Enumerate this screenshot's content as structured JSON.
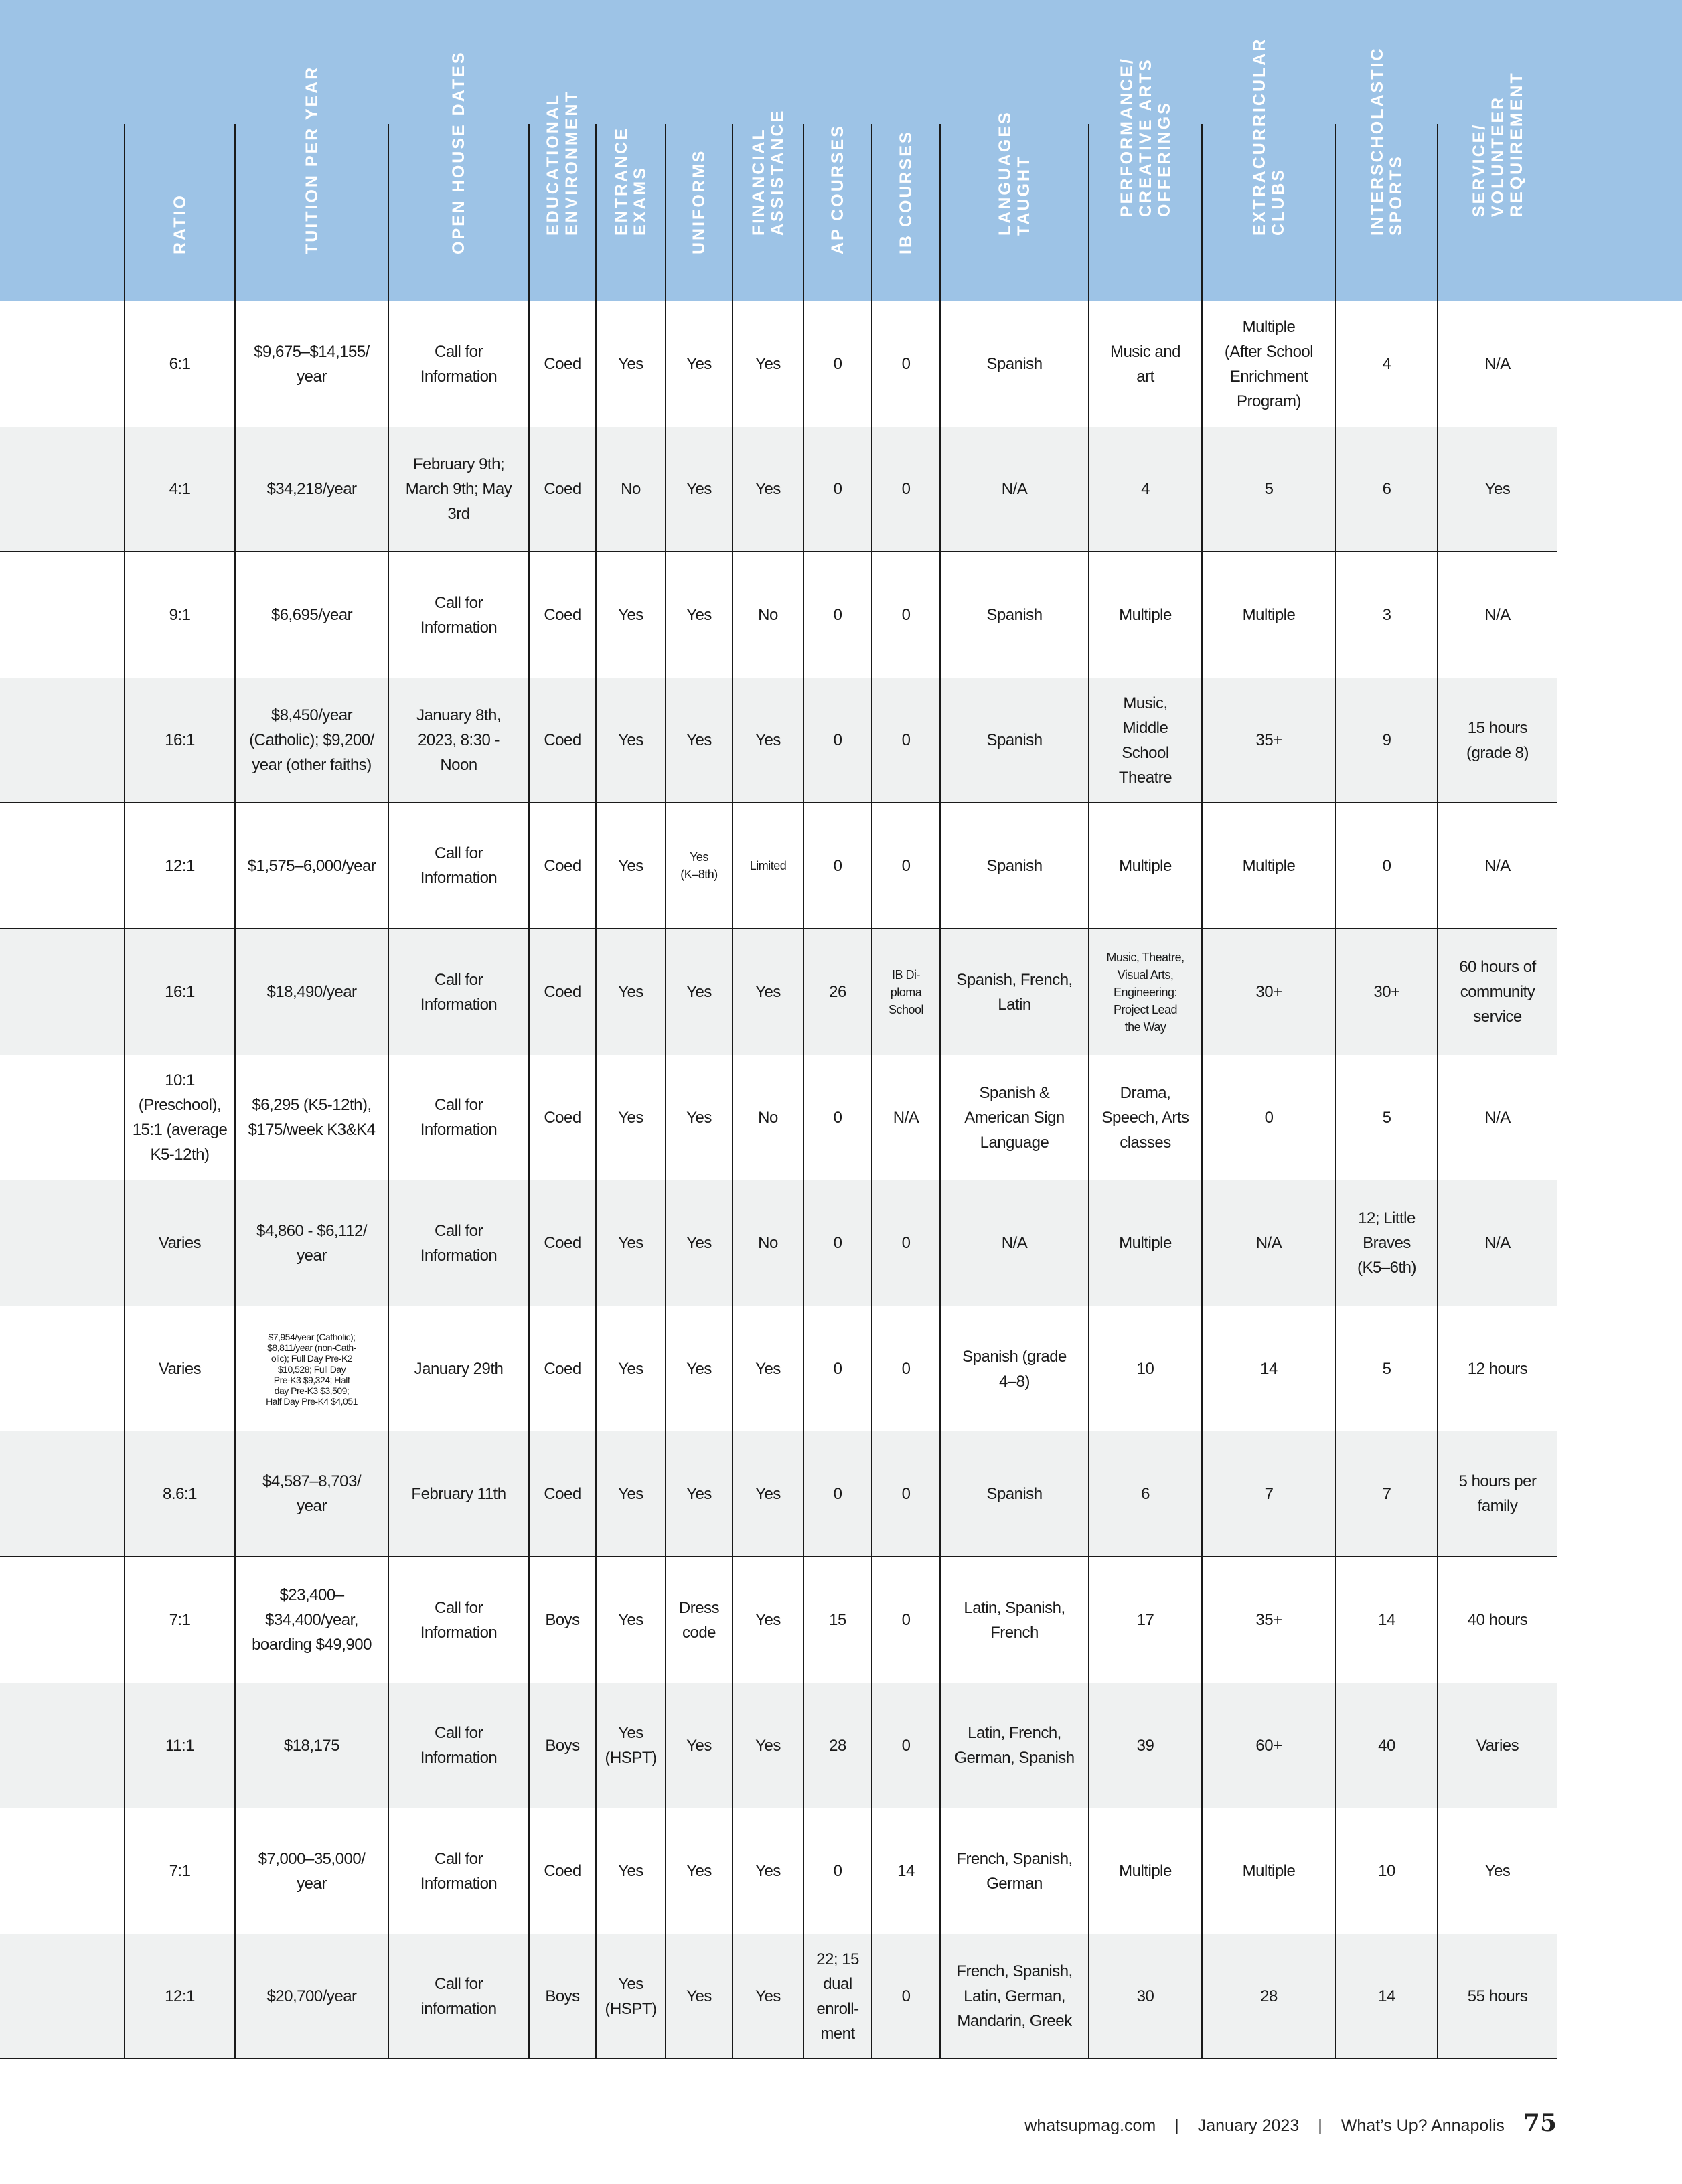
{
  "header": {
    "background": "#9dc3e6",
    "columns": [
      "",
      "RATIO",
      "TUITION PER YEAR",
      "OPEN HOUSE DATES",
      "EDUCATIONAL\nENVIRONMENT",
      "ENTRANCE\nEXAMS",
      "UNIFORMS",
      "FINANCIAL\nASSISTANCE",
      "AP COURSES",
      "IB COURSES",
      "LANGUAGES\nTAUGHT",
      "PERFORMANCE/\nCREATIVE ARTS\nOFFERINGS",
      "EXTRACURRICULAR\nCLUBS",
      "INTERSCHOLASTIC\nSPORTS",
      "SERVICE/\nVOLUNTEER\nREQUIREMENT"
    ]
  },
  "rows": [
    [
      "",
      "6:1",
      "$9,675–$14,155/\nyear",
      "Call for\nInformation",
      "Coed",
      "Yes",
      "Yes",
      "Yes",
      "0",
      "0",
      "Spanish",
      "Music and\nart",
      "Multiple\n(After School\nEnrichment\nProgram)",
      "4",
      "N/A"
    ],
    [
      "",
      "4:1",
      "$34,218/year",
      "February 9th;\nMarch 9th; May\n3rd",
      "Coed",
      "No",
      "Yes",
      "Yes",
      "0",
      "0",
      "N/A",
      "4",
      "5",
      "6",
      "Yes"
    ],
    [
      "",
      "9:1",
      "$6,695/year",
      "Call for\nInformation",
      "Coed",
      "Yes",
      "Yes",
      "No",
      "0",
      "0",
      "Spanish",
      "Multiple",
      "Multiple",
      "3",
      "N/A"
    ],
    [
      "",
      "16:1",
      "$8,450/year\n(Catholic); $9,200/\nyear (other faiths)",
      "January 8th,\n2023, 8:30 -\nNoon",
      "Coed",
      "Yes",
      "Yes",
      "Yes",
      "0",
      "0",
      "Spanish",
      "Music,\nMiddle\nSchool\nTheatre",
      "35+",
      "9",
      "15 hours\n(grade 8)"
    ],
    [
      "",
      "12:1",
      "$1,575–6,000/year",
      "Call for\nInformation",
      "Coed",
      "Yes",
      "Yes\n(K–8th)",
      "Limited",
      "0",
      "0",
      "Spanish",
      "Multiple",
      "Multiple",
      "0",
      "N/A"
    ],
    [
      "",
      "16:1",
      "$18,490/year",
      "Call for\nInformation",
      "Coed",
      "Yes",
      "Yes",
      "Yes",
      "26",
      "IB Di-\nploma\nSchool",
      "Spanish, French,\nLatin",
      "Music, Theatre,\nVisual Arts,\nEngineering:\nProject Lead\nthe Way",
      "30+",
      "30+",
      "60 hours of\ncommunity\nservice"
    ],
    [
      "",
      "10:1\n(Preschool),\n15:1 (average\nK5-12th)",
      "$6,295 (K5-12th),\n$175/week K3&K4",
      "Call for\nInformation",
      "Coed",
      "Yes",
      "Yes",
      "No",
      "0",
      "N/A",
      "Spanish &\nAmerican Sign\nLanguage",
      "Drama,\nSpeech, Arts\nclasses",
      "0",
      "5",
      "N/A"
    ],
    [
      "",
      "Varies",
      "$4,860 - $6,112/\nyear",
      "Call for\nInformation",
      "Coed",
      "Yes",
      "Yes",
      "No",
      "0",
      "0",
      "N/A",
      "Multiple",
      "N/A",
      "12; Little\nBraves\n(K5–6th)",
      "N/A"
    ],
    [
      "",
      "Varies",
      "$7,954/year (Catholic);\n$8,811/year (non-Cath-\nolic); Full Day Pre-K2\n$10,528; Full Day\nPre-K3 $9,324; Half\nday Pre-K3 $3,509;\nHalf Day Pre-K4 $4,051",
      "January 29th",
      "Coed",
      "Yes",
      "Yes",
      "Yes",
      "0",
      "0",
      "Spanish (grade\n4–8)",
      "10",
      "14",
      "5",
      "12 hours"
    ],
    [
      "",
      "8.6:1",
      "$4,587–8,703/\nyear",
      "February 11th",
      "Coed",
      "Yes",
      "Yes",
      "Yes",
      "0",
      "0",
      "Spanish",
      "6",
      "7",
      "7",
      "5 hours per\nfamily"
    ],
    [
      "",
      "7:1",
      "$23,400–\n$34,400/year,\nboarding $49,900",
      "Call for\nInformation",
      "Boys",
      "Yes",
      "Dress\ncode",
      "Yes",
      "15",
      "0",
      "Latin, Spanish,\nFrench",
      "17",
      "35+",
      "14",
      "40 hours"
    ],
    [
      "",
      "11:1",
      "$18,175",
      "Call for\nInformation",
      "Boys",
      "Yes\n(HSPT)",
      "Yes",
      "Yes",
      "28",
      "0",
      "Latin, French,\nGerman, Spanish",
      "39",
      "60+",
      "40",
      "Varies"
    ],
    [
      "",
      "7:1",
      "$7,000–35,000/\nyear",
      "Call for\nInformation",
      "Coed",
      "Yes",
      "Yes",
      "Yes",
      "0",
      "14",
      "French, Spanish,\nGerman",
      "Multiple",
      "Multiple",
      "10",
      "Yes"
    ],
    [
      "",
      "12:1",
      "$20,700/year",
      "Call for\ninformation",
      "Boys",
      "Yes\n(HSPT)",
      "Yes",
      "Yes",
      "22; 15\ndual\nenroll-\nment",
      "0",
      "French, Spanish,\nLatin, German,\nMandarin, Greek",
      "30",
      "28",
      "14",
      "55 hours"
    ]
  ],
  "footer": {
    "site": "whatsupmag.com",
    "sep": "|",
    "issue": "January 2023",
    "publication": "What’s Up? Annapolis",
    "page": "75"
  }
}
